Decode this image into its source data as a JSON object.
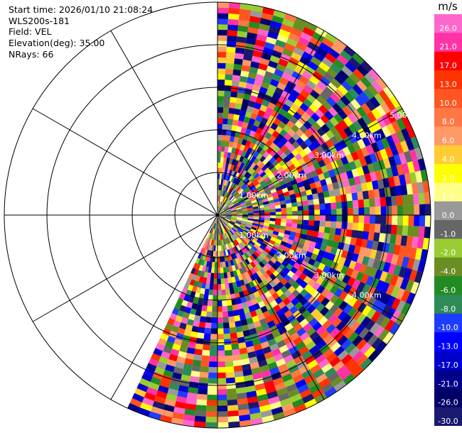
{
  "info": {
    "start_time": "Start time: 2026/01/10 21:08:24",
    "instrument": "WLS200s-181",
    "field": "Field: VEL",
    "elevation": "Elevation(deg): 35.00",
    "nrays": "NRays: 66"
  },
  "chart_data": {
    "type": "heatmap",
    "projection": "polar-ppi",
    "range_ring_labels": [
      "1.00km",
      "2.00km",
      "3.00km",
      "4.00km",
      "5.00km"
    ],
    "azimuth_span_deg": [
      0,
      205
    ],
    "colorbar": {
      "unit": "m/s",
      "tick_labels": [
        "26.0",
        "21.0",
        "17.0",
        "13.0",
        "10.0",
        "8.0",
        "6.0",
        "4.0",
        "2.0",
        "1.0",
        "0.0",
        "-1.0",
        "-2.0",
        "-4.0",
        "-6.0",
        "-8.0",
        "-10.0",
        "-13.0",
        "-17.0",
        "-21.0",
        "-26.0",
        "-30.0"
      ],
      "colors": [
        "#ff66cc",
        "#ff33a6",
        "#ff0000",
        "#ff3300",
        "#ff5522",
        "#ff7744",
        "#ff9966",
        "#ffcc33",
        "#ffff00",
        "#ffff88",
        "#999999",
        "#666666",
        "#99cc33",
        "#6b8e23",
        "#228b22",
        "#2e8b57",
        "#1e3cff",
        "#0000ff",
        "#0000cc",
        "#00008b",
        "#000066",
        "#191970"
      ]
    }
  }
}
